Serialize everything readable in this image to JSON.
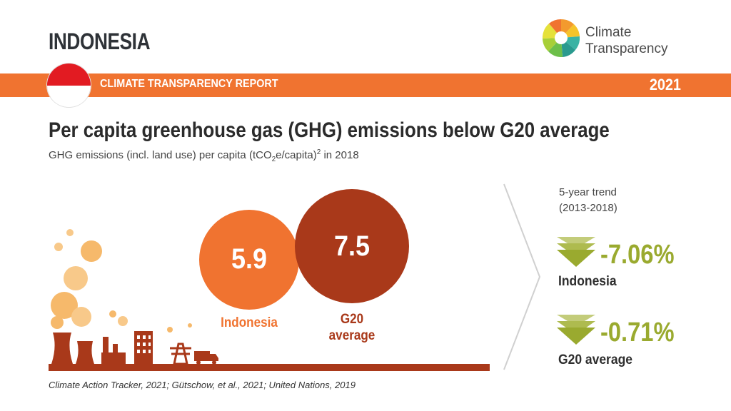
{
  "header": {
    "country": "INDONESIA",
    "brand_line1": "Climate",
    "brand_line2": "Transparency"
  },
  "banner": {
    "label": "CLIMATE TRANSPARENCY REPORT",
    "year": "2021"
  },
  "headline": {
    "title": "Per capita greenhouse gas (GHG) emissions below G20 average",
    "subtitle_prefix": "GHG emissions (incl. land use) per capita (tCO",
    "subtitle_sub": "2",
    "subtitle_mid": "e/capita)",
    "subtitle_sup": "2",
    "subtitle_suffix": " in 2018"
  },
  "comparison": {
    "indonesia_value": "5.9",
    "indonesia_label": "Indonesia",
    "g20_value": "7.5",
    "g20_label_line1": "G20",
    "g20_label_line2": "average"
  },
  "trend": {
    "heading_line1": "5-year trend",
    "heading_line2": "(2013-2018)",
    "items": [
      {
        "value": "-7.06%",
        "label": "Indonesia"
      },
      {
        "value": "-0.71%",
        "label": "G20 average"
      }
    ]
  },
  "source": "Climate Action Tracker, 2021; Gütschow, et al., 2021; United Nations, 2019",
  "colors": {
    "accent_orange": "#f07330",
    "dark_red": "#a9391a",
    "trend_green": "#9aaa2f",
    "flag_red": "#e21b22"
  }
}
